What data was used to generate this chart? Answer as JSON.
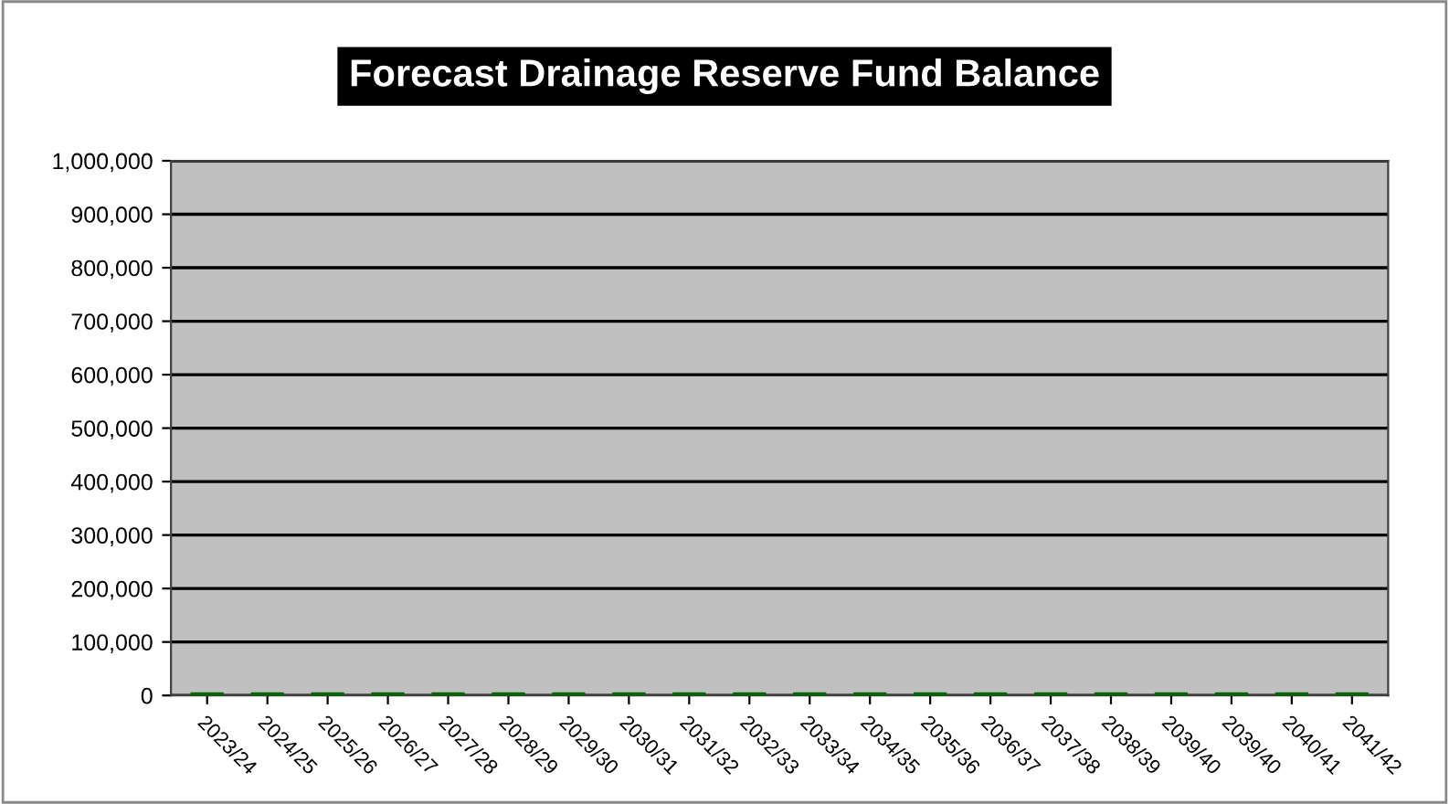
{
  "chart_data": {
    "type": "bar",
    "title": "Forecast Drainage Reserve Fund Balance",
    "categories": [
      "2023/24",
      "2024/25",
      "2025/26",
      "2026/27",
      "2027/28",
      "2028/29",
      "2029/30",
      "2030/31",
      "2031/32",
      "2032/33",
      "2033/34",
      "2034/35",
      "2035/36",
      "2036/37",
      "2037/38",
      "2038/39",
      "2039/40",
      "2039/40",
      "2040/41",
      "2041/42"
    ],
    "values": [
      0,
      0,
      0,
      0,
      0,
      0,
      0,
      0,
      0,
      0,
      0,
      0,
      0,
      0,
      0,
      0,
      0,
      0,
      0,
      0
    ],
    "color": "#006400",
    "ylim": [
      0,
      1000000
    ],
    "yticks": [
      {
        "value": 0,
        "label": "0"
      },
      {
        "value": 100000,
        "label": "100,000"
      },
      {
        "value": 200000,
        "label": "200,000"
      },
      {
        "value": 300000,
        "label": "300,000"
      },
      {
        "value": 400000,
        "label": "400,000"
      },
      {
        "value": 500000,
        "label": "500,000"
      },
      {
        "value": 600000,
        "label": "600,000"
      },
      {
        "value": 700000,
        "label": "700,000"
      },
      {
        "value": 800000,
        "label": "800,000"
      },
      {
        "value": 900000,
        "label": "900,000"
      },
      {
        "value": 1000000,
        "label": "1,000,000"
      }
    ],
    "grid": "y",
    "legend": false
  }
}
